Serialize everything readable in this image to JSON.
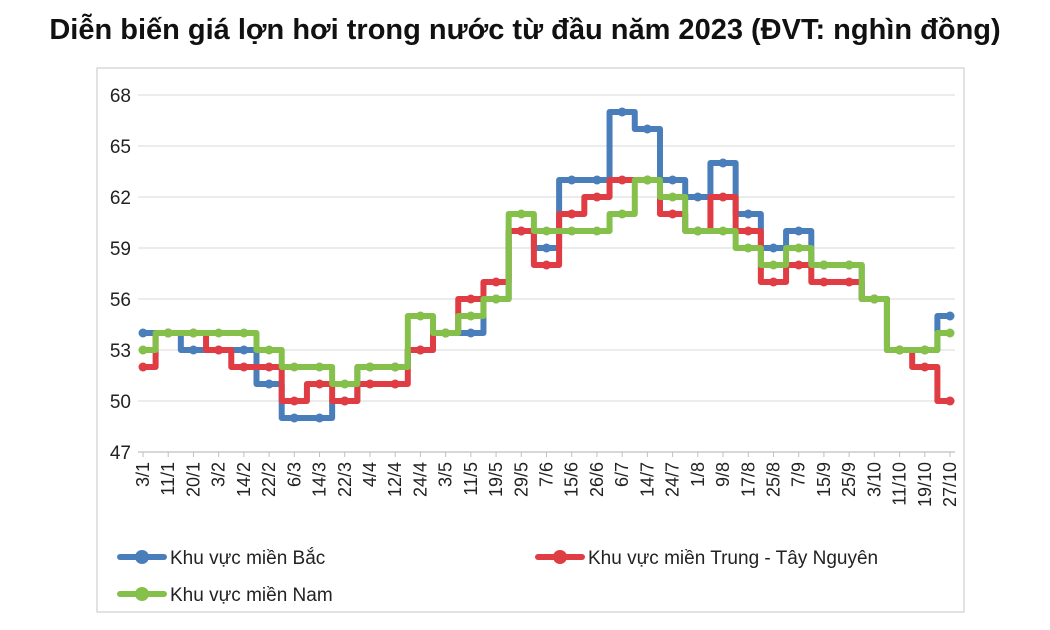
{
  "chart_data": {
    "type": "line",
    "title": "Diễn biến giá lợn hơi trong nước từ đầu năm 2023 (ĐVT: nghìn đồng)",
    "xlabel": "",
    "ylabel": "",
    "ylim": [
      47,
      68
    ],
    "yticks": [
      47,
      50,
      53,
      56,
      59,
      62,
      65,
      68
    ],
    "grid": "horizontal",
    "legend_position": "bottom",
    "categories": [
      "3/1",
      "11/1",
      "20/1",
      "3/2",
      "14/2",
      "22/2",
      "6/3",
      "14/3",
      "22/3",
      "4/4",
      "12/4",
      "24/4",
      "3/5",
      "11/5",
      "19/5",
      "29/5",
      "7/6",
      "15/6",
      "26/6",
      "6/7",
      "14/7",
      "24/7",
      "1/8",
      "9/8",
      "17/8",
      "25/8",
      "7/9",
      "15/9",
      "25/9",
      "3/10",
      "11/10",
      "19/10",
      "27/10"
    ],
    "series": [
      {
        "name": "Khu vực miền Bắc",
        "color": "#4a7ebb",
        "values": [
          54,
          54,
          53,
          53,
          53,
          51,
          49,
          49,
          50,
          52,
          52,
          53,
          54,
          54,
          56,
          60,
          59,
          63,
          63,
          67,
          66,
          63,
          62,
          64,
          61,
          59,
          60,
          58,
          58,
          56,
          53,
          53,
          55
        ]
      },
      {
        "name": "Khu vực miền Trung - Tây Nguyên",
        "color": "#e03c43",
        "values": [
          52,
          54,
          54,
          53,
          52,
          52,
          50,
          51,
          50,
          51,
          51,
          53,
          54,
          56,
          57,
          60,
          58,
          61,
          62,
          63,
          63,
          61,
          60,
          62,
          60,
          57,
          58,
          57,
          57,
          56,
          53,
          52,
          50
        ]
      },
      {
        "name": "Khu vực miền Nam",
        "color": "#84c04a",
        "values": [
          53,
          54,
          54,
          54,
          54,
          53,
          52,
          52,
          51,
          52,
          52,
          55,
          54,
          55,
          56,
          61,
          60,
          60,
          60,
          61,
          63,
          62,
          60,
          60,
          59,
          58,
          59,
          58,
          58,
          56,
          53,
          53,
          54
        ]
      }
    ]
  }
}
